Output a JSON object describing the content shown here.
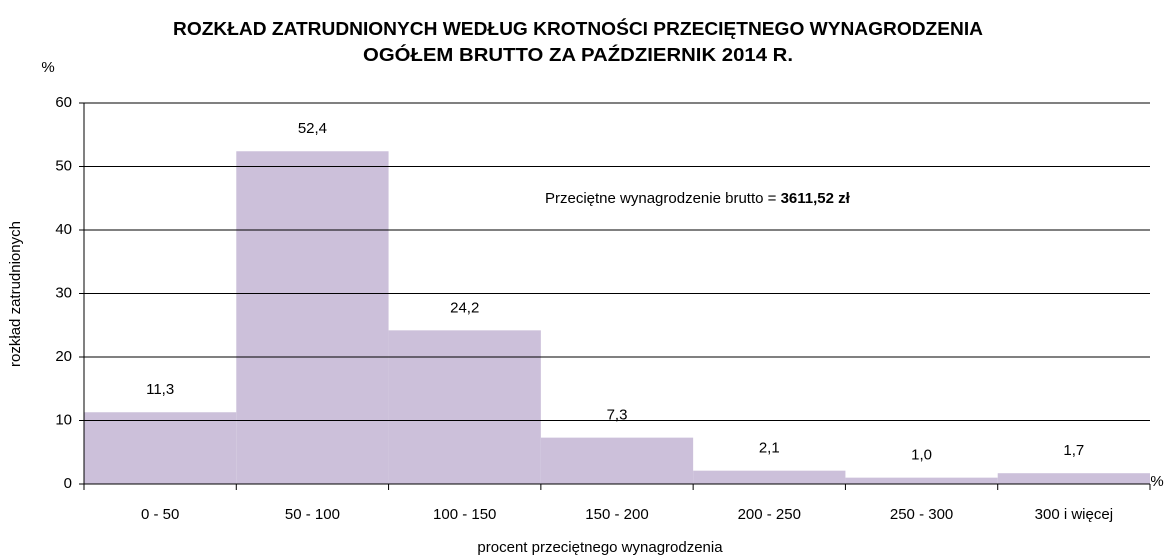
{
  "chart_data": {
    "type": "bar",
    "title": [
      "ROZKŁAD ZATRUDNIONYCH WEDŁUG KROTNOŚCI PRZECIĘTNEGO WYNAGRODZENIA",
      "OGÓŁEM BRUTTO ZA PAŹDZIERNIK 2014 R."
    ],
    "y_unit": "%",
    "x_unit": "%",
    "y_label": "rozkład zatrudnionych",
    "x_label": "procent przeciętnego wynagrodzenia",
    "annotation": [
      "Przeciętne wynagrodzenie brutto = ",
      "3611,52 zł"
    ],
    "categories": [
      "0 - 50",
      "50 - 100",
      "100 - 150",
      "150 - 200",
      "200 - 250",
      "250 - 300",
      "300 i więcej"
    ],
    "values": [
      11.3,
      52.4,
      24.2,
      7.3,
      2.1,
      1.0,
      1.7
    ],
    "value_labels": [
      "11,3",
      "52,4",
      "24,2",
      "7,3",
      "2,1",
      "1,0",
      "1,7"
    ],
    "color": "#ccc0da",
    "ylim": [
      0,
      60
    ],
    "yticks": [
      0,
      10,
      20,
      30,
      40,
      50,
      60
    ],
    "grid": true
  }
}
